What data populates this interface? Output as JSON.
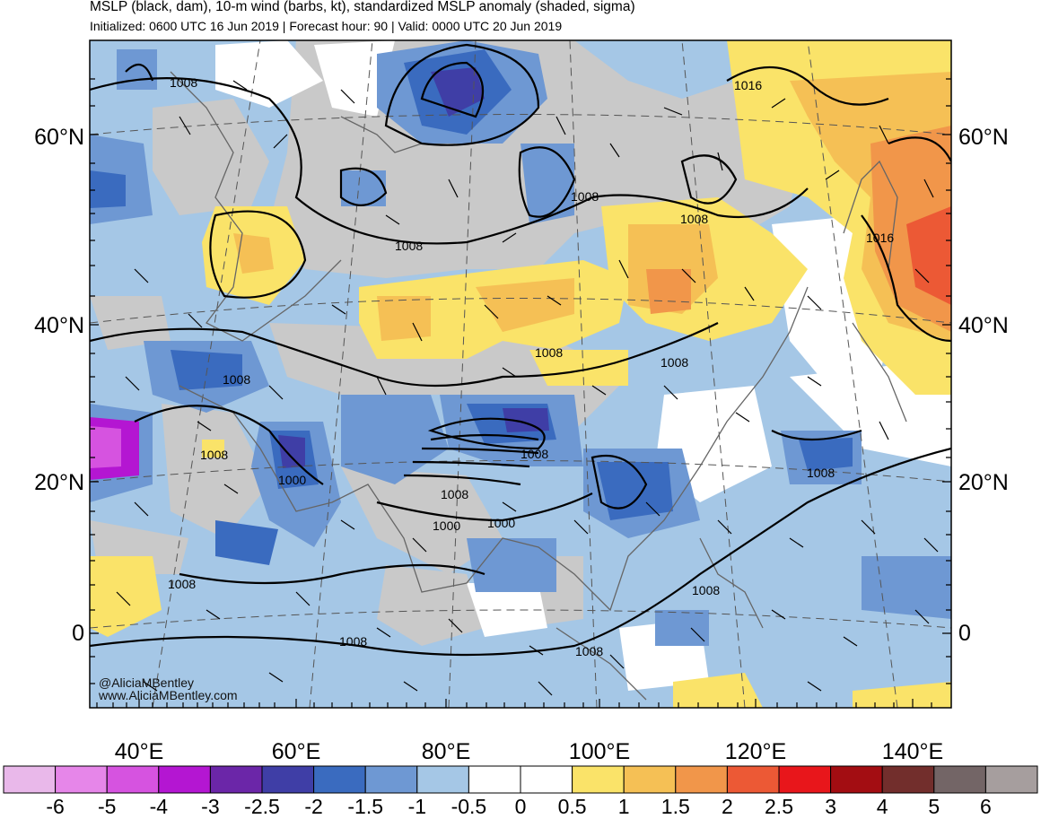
{
  "title": "MSLP (black, dam), 10-m wind (barbs, kt), standardized MSLP anomaly (shaded, sigma)",
  "subtitle": "Initialized: 0600 UTC 16 Jun 2019 | Forecast hour: 90 | Valid: 0000 UTC 20 Jun 2019",
  "lat_labels": [
    "60°N",
    "40°N",
    "20°N",
    "0"
  ],
  "lon_labels": [
    "40°E",
    "60°E",
    "80°E",
    "100°E",
    "120°E",
    "140°E"
  ],
  "credits": [
    "@AliciaMBentley",
    "www.AliciaMBentley.com"
  ],
  "contour_labels": [
    "1008",
    "1016",
    "1008",
    "1008",
    "1008",
    "1016",
    "1008",
    "1008",
    "1008",
    "1008",
    "1008",
    "1000",
    "1008",
    "1000",
    "1000",
    "1008",
    "1008",
    "1008",
    "1008"
  ],
  "colorbar": {
    "labels": [
      "-6",
      "-5",
      "-4",
      "-3",
      "-2.5",
      "-2",
      "-1.5",
      "-1",
      "-0.5",
      "0",
      "0.5",
      "1",
      "1.5",
      "2",
      "2.5",
      "3",
      "4",
      "5",
      "6"
    ],
    "colors": [
      "#e9b8ea",
      "#e686e9",
      "#d653e0",
      "#b416d2",
      "#6b26a8",
      "#3f3ea6",
      "#3a6bbf",
      "#6e98d3",
      "#a5c7e6",
      "#ffffff",
      "#ffffff",
      "#fae369",
      "#f5c055",
      "#f1964a",
      "#ec5935",
      "#e8161b",
      "#a30d12",
      "#722e2c",
      "#736566",
      "#a69e9e"
    ]
  }
}
